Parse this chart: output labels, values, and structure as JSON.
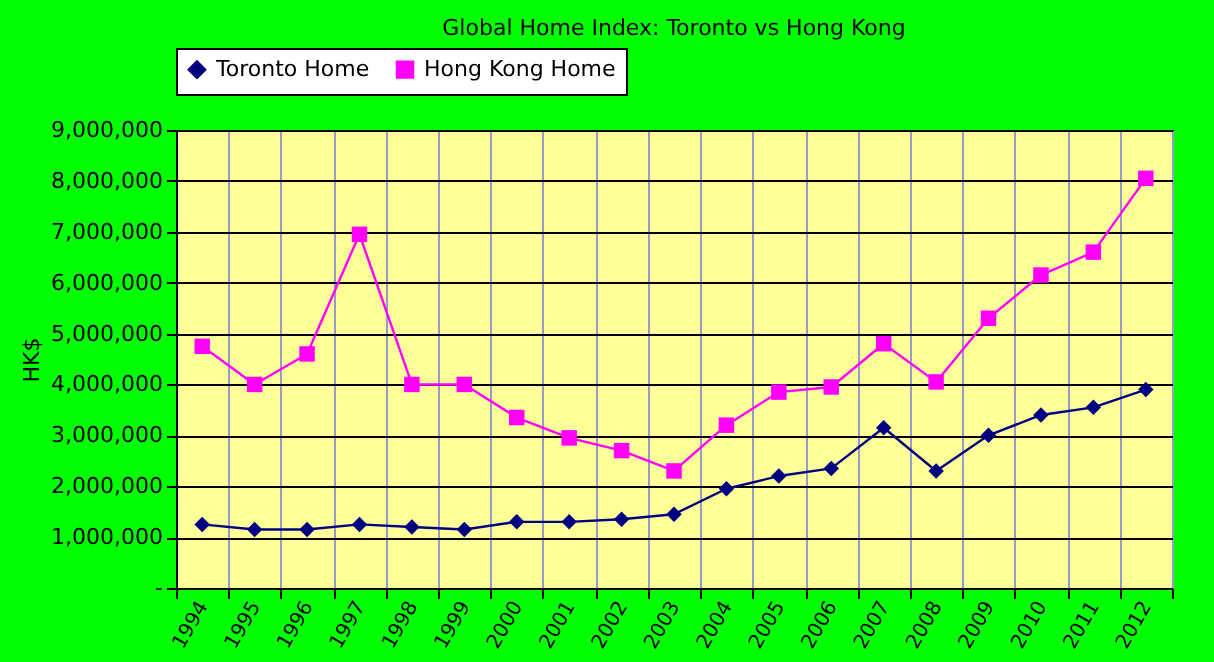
{
  "chart_data": {
    "type": "line",
    "title": "Global Home Index: Toronto vs Hong Kong",
    "ylabel": "HK$",
    "categories": [
      "1994",
      "1995",
      "1996",
      "1997",
      "1998",
      "1999",
      "2000",
      "2001",
      "2002",
      "2003",
      "2004",
      "2005",
      "2006",
      "2007",
      "2008",
      "2009",
      "2010",
      "2011",
      "2012"
    ],
    "series": [
      {
        "name": "Toronto Home",
        "color": "#000080",
        "marker": "diamond",
        "values": [
          1250000,
          1150000,
          1150000,
          1250000,
          1200000,
          1150000,
          1300000,
          1300000,
          1350000,
          1450000,
          1950000,
          2200000,
          2350000,
          3150000,
          2300000,
          3000000,
          3400000,
          3550000,
          3900000
        ]
      },
      {
        "name": "Hong Kong Home",
        "color": "#ff00ff",
        "marker": "square",
        "values": [
          4750000,
          4000000,
          4600000,
          6950000,
          4000000,
          4000000,
          3350000,
          2950000,
          2700000,
          2300000,
          3200000,
          3850000,
          3950000,
          4800000,
          4050000,
          5300000,
          6150000,
          6600000,
          8050000
        ]
      }
    ],
    "ylim": [
      0,
      9000000
    ],
    "yticks": [
      {
        "value": 0,
        "label": "-"
      },
      {
        "value": 1000000,
        "label": "1,000,000"
      },
      {
        "value": 2000000,
        "label": "2,000,000"
      },
      {
        "value": 3000000,
        "label": "3,000,000"
      },
      {
        "value": 4000000,
        "label": "4,000,000"
      },
      {
        "value": 5000000,
        "label": "5,000,000"
      },
      {
        "value": 6000000,
        "label": "6,000,000"
      },
      {
        "value": 7000000,
        "label": "7,000,000"
      },
      {
        "value": 8000000,
        "label": "8,000,000"
      },
      {
        "value": 9000000,
        "label": "9,000,000"
      }
    ],
    "grid": true,
    "legend": "top",
    "line_style": "solid"
  }
}
